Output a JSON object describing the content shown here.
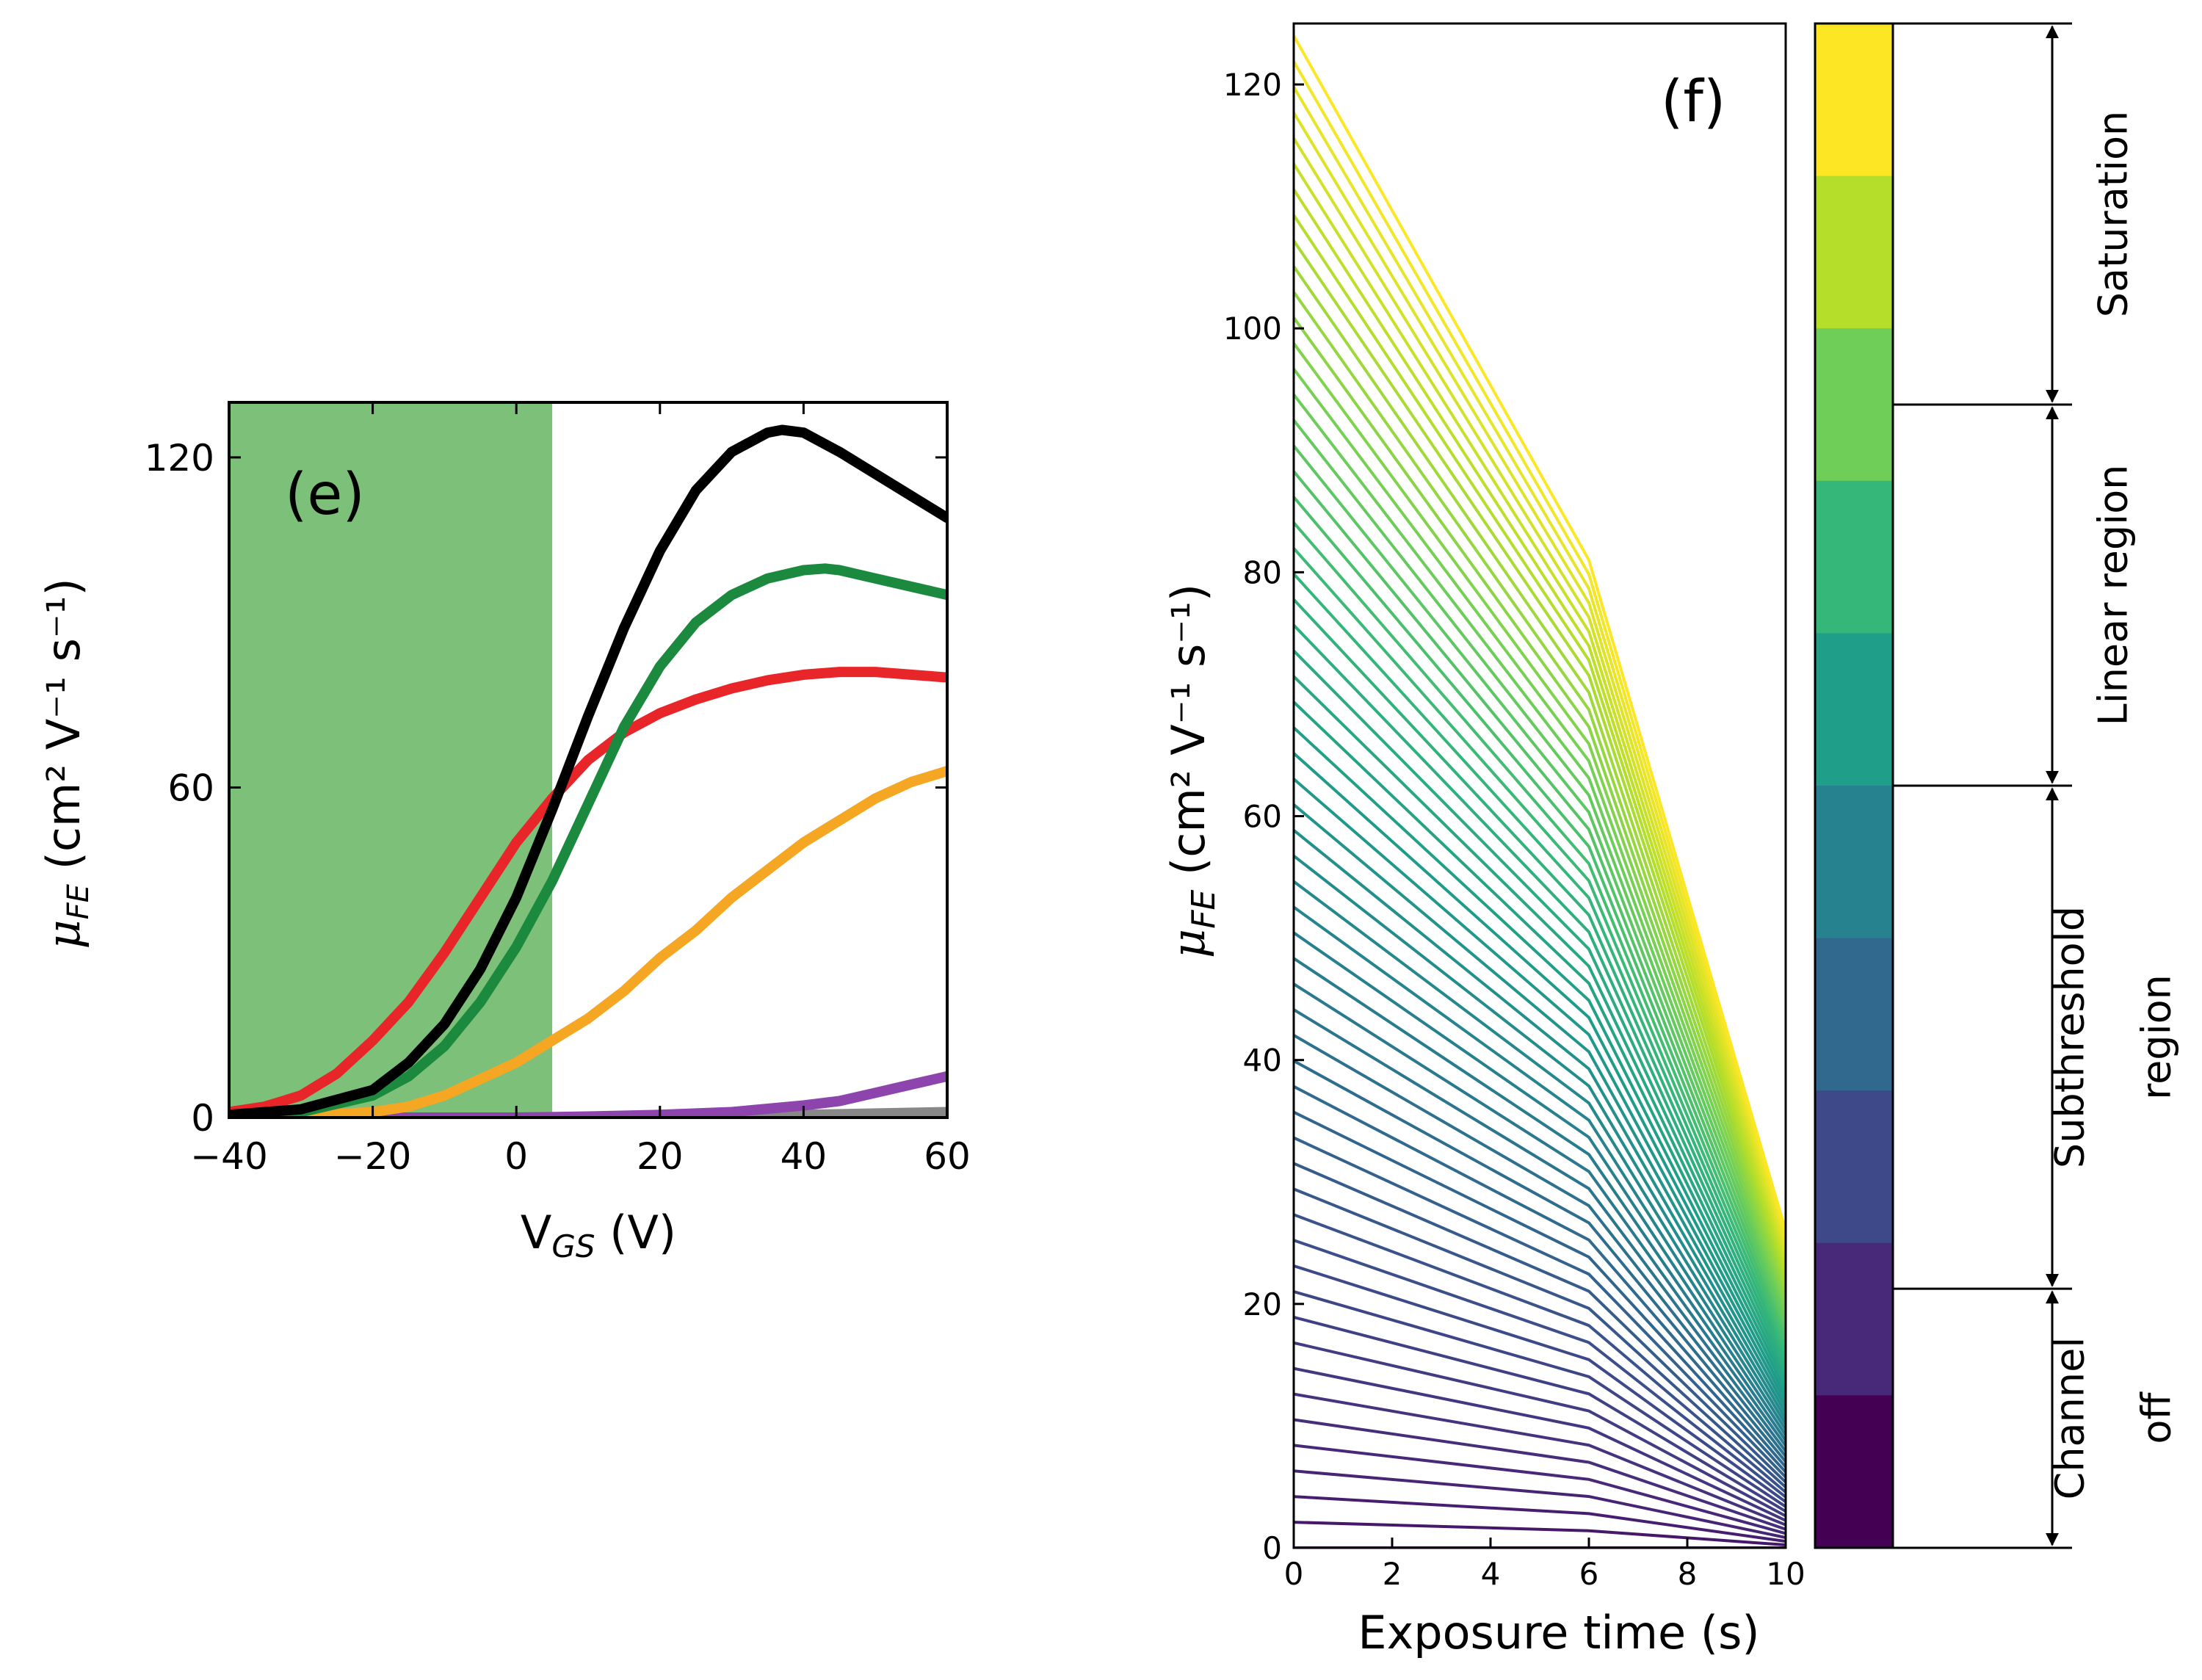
{
  "chart_data": [
    {
      "panel": "(e)",
      "type": "line",
      "xlabel": {
        "main": "V",
        "sub": "GS",
        "rest": " (V)"
      },
      "ylabel": {
        "mu": "μ",
        "sub": "FE",
        "rest": " (cm² V⁻¹ s⁻¹)"
      },
      "xlim": [
        -40,
        60
      ],
      "ylim": [
        0,
        130
      ],
      "xticks": [
        -40,
        -20,
        0,
        20,
        40,
        60
      ],
      "xtick_labels": [
        "−40",
        "−20",
        "0",
        "20",
        "40",
        "60"
      ],
      "yticks": [
        0,
        60,
        120
      ],
      "ytick_labels": [
        "0",
        "60",
        "120"
      ],
      "shaded_region": {
        "x": [
          -40,
          5
        ],
        "color": "#7cc07a"
      },
      "series": [
        {
          "color": "#000000",
          "x": [
            -40,
            -30,
            -20,
            -15,
            -10,
            -5,
            0,
            5,
            10,
            15,
            20,
            25,
            30,
            35,
            37,
            40,
            45,
            50,
            55,
            60
          ],
          "y": [
            0.5,
            1.5,
            5,
            10,
            17,
            27,
            40,
            56,
            73,
            89,
            103,
            114,
            121,
            124.5,
            125,
            124.5,
            121,
            117,
            113,
            109
          ]
        },
        {
          "color": "#1b8a3e",
          "x": [
            -40,
            -30,
            -20,
            -15,
            -10,
            -5,
            0,
            5,
            10,
            15,
            20,
            25,
            30,
            35,
            40,
            43,
            45,
            50,
            55,
            60
          ],
          "y": [
            0.3,
            1,
            4,
            7.5,
            13,
            21,
            31,
            43,
            57,
            71,
            82,
            90,
            95,
            98,
            99.5,
            99.8,
            99.5,
            98,
            96.5,
            95
          ]
        },
        {
          "color": "#e8262a",
          "x": [
            -40,
            -35,
            -30,
            -25,
            -20,
            -15,
            -10,
            -5,
            0,
            5,
            10,
            15,
            20,
            25,
            30,
            35,
            40,
            45,
            50,
            55,
            60
          ],
          "y": [
            1,
            2,
            4,
            8,
            14,
            21,
            30,
            40,
            50,
            58,
            65,
            70,
            73.5,
            76,
            78,
            79.5,
            80.5,
            81,
            81,
            80.5,
            80
          ]
        },
        {
          "color": "#f5a623",
          "x": [
            -40,
            -30,
            -20,
            -15,
            -10,
            -5,
            0,
            5,
            10,
            15,
            20,
            25,
            30,
            35,
            40,
            45,
            50,
            55,
            60
          ],
          "y": [
            0,
            0.3,
            1,
            2,
            4,
            7,
            10,
            14,
            18,
            23,
            29,
            34,
            40,
            45,
            50,
            54,
            58,
            61,
            63
          ]
        },
        {
          "color": "#8e44ad",
          "x": [
            -40,
            -20,
            0,
            10,
            20,
            30,
            35,
            40,
            45,
            50,
            55,
            60
          ],
          "y": [
            0,
            0,
            0,
            0.2,
            0.5,
            1,
            1.6,
            2.2,
            3,
            4.5,
            6,
            7.5
          ]
        },
        {
          "color": "#888888",
          "x": [
            -40,
            0,
            20,
            40,
            60
          ],
          "y": [
            0,
            0,
            0.2,
            0.5,
            1
          ]
        }
      ]
    },
    {
      "panel": "(f)",
      "type": "line",
      "xlabel": "Exposure time (s)",
      "ylabel": {
        "mu": "μ",
        "sub": "FE",
        "rest": " (cm² V⁻¹ s⁻¹)"
      },
      "xlim": [
        0,
        10
      ],
      "ylim": [
        0,
        125
      ],
      "xticks": [
        0,
        2,
        4,
        6,
        8,
        10
      ],
      "xtick_labels": [
        "0",
        "2",
        "4",
        "6",
        "8",
        "10"
      ],
      "yticks": [
        0,
        20,
        40,
        60,
        80,
        100,
        120
      ],
      "ytick_labels": [
        "0",
        "20",
        "40",
        "60",
        "80",
        "100",
        "120"
      ],
      "x": [
        0,
        6,
        10
      ],
      "family": {
        "count": 60,
        "start": {
          "min": 0,
          "max": 124
        },
        "mid_pinch": {
          "x": 6,
          "center": 52,
          "spread": 81
        },
        "end": {
          "min": 0,
          "max": 26
        }
      },
      "colorbar": {
        "colors": [
          "#fde725",
          "#b5de2b",
          "#6ece58",
          "#35b779",
          "#1f9e89",
          "#26828e",
          "#31688e",
          "#3e4989",
          "#482878",
          "#440154"
        ],
        "regions": [
          {
            "label": "Saturation",
            "from": 0.0,
            "to": 0.25
          },
          {
            "label": "Linear region",
            "from": 0.25,
            "to": 0.5
          },
          {
            "label": "Subthreshold region",
            "from": 0.5,
            "to": 0.83
          },
          {
            "label": "Channel off",
            "from": 0.83,
            "to": 1.0
          }
        ]
      }
    }
  ]
}
